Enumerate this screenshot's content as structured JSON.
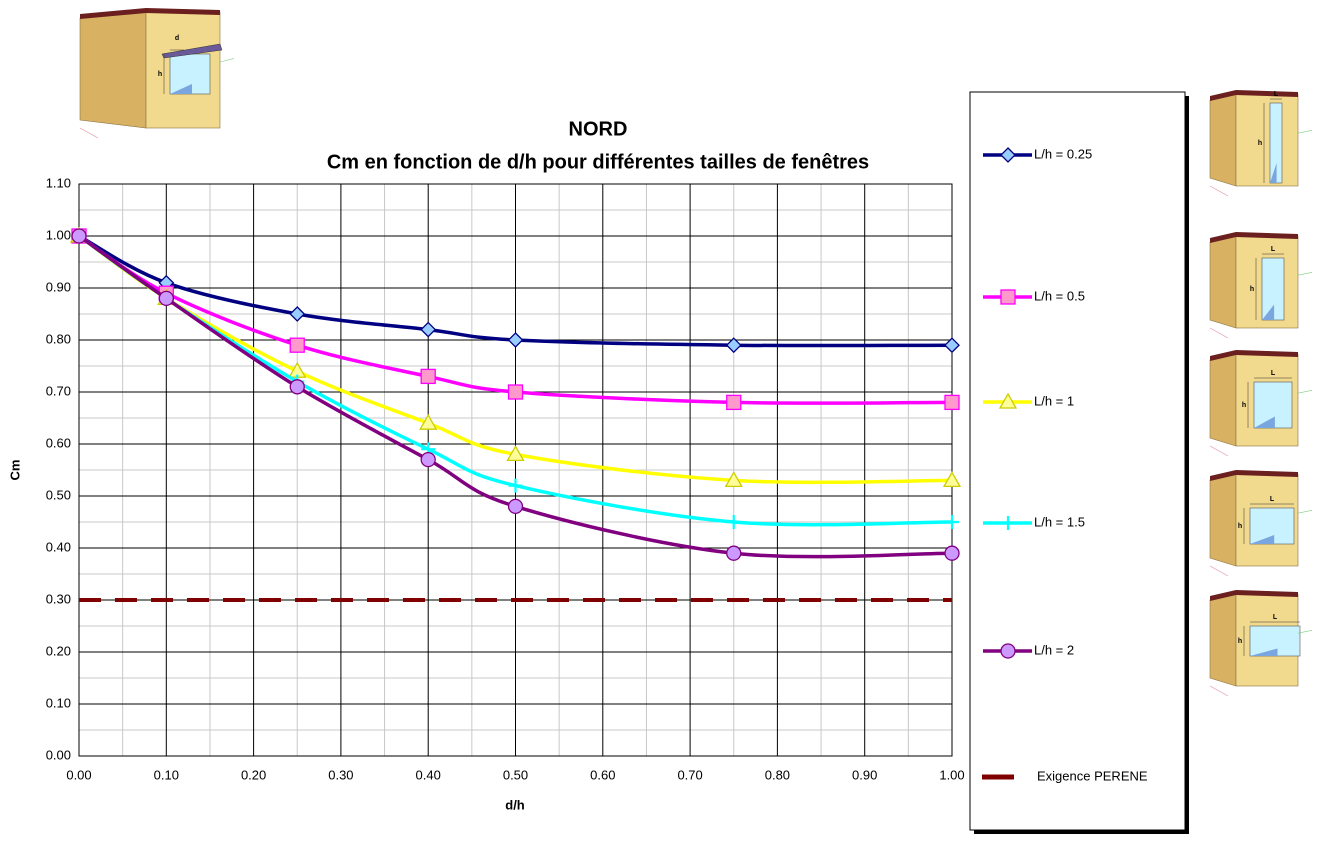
{
  "chart_data": {
    "type": "line",
    "title": "NORD",
    "subtitle": "Cm en fonction de d/h pour différentes tailles de fenêtres",
    "xlabel": "d/h",
    "ylabel": "Cm",
    "x": [
      0,
      0.1,
      0.25,
      0.4,
      0.5,
      0.75,
      1.0
    ],
    "series": [
      {
        "name": "L/h = 0.25",
        "color": "#000080",
        "marker": "diamond",
        "marker_fill": "#99ccff",
        "values": [
          1.0,
          0.91,
          0.85,
          0.82,
          0.8,
          0.79,
          0.79
        ]
      },
      {
        "name": "L/h = 0.5",
        "color": "#ff00ff",
        "marker": "square",
        "marker_fill": "#ff99cc",
        "values": [
          1.0,
          0.89,
          0.79,
          0.73,
          0.7,
          0.68,
          0.68
        ]
      },
      {
        "name": "L/h = 1",
        "color": "#ffff00",
        "marker": "triangle",
        "marker_fill": "#ffff99",
        "values": [
          1.0,
          0.88,
          0.74,
          0.64,
          0.58,
          0.53,
          0.53
        ]
      },
      {
        "name": "L/h = 1.5",
        "color": "#00ffff",
        "marker": "plus",
        "marker_fill": "#00ffff",
        "values": [
          1.0,
          0.88,
          0.72,
          0.59,
          0.52,
          0.45,
          0.45
        ]
      },
      {
        "name": "L/h = 2",
        "color": "#800080",
        "marker": "circle",
        "marker_fill": "#cc99ff",
        "values": [
          1.0,
          0.88,
          0.71,
          0.57,
          0.48,
          0.39,
          0.39
        ]
      },
      {
        "name": "Exigence PERENE",
        "color": "#800000",
        "marker": "none",
        "dashed": true,
        "values": [
          0.3,
          0.3,
          0.3,
          0.3,
          0.3,
          0.3,
          0.3
        ]
      }
    ],
    "xlim": [
      0,
      1.0
    ],
    "xticks": [
      {
        "value": 0,
        "label": "0.00"
      },
      {
        "value": 0.1,
        "label": "0.10"
      },
      {
        "value": 0.2,
        "label": "0.20"
      },
      {
        "value": 0.3,
        "label": "0.30"
      },
      {
        "value": 0.4,
        "label": "0.40"
      },
      {
        "value": 0.5,
        "label": "0.50"
      },
      {
        "value": 0.6,
        "label": "0.60"
      },
      {
        "value": 0.7,
        "label": "0.70"
      },
      {
        "value": 0.8,
        "label": "0.80"
      },
      {
        "value": 0.9,
        "label": "0.90"
      },
      {
        "value": 1.0,
        "label": "1.00"
      }
    ],
    "ylim": [
      0,
      1.1
    ],
    "yticks": [
      {
        "value": 0,
        "label": "0.00"
      },
      {
        "value": 0.1,
        "label": "0.10"
      },
      {
        "value": 0.2,
        "label": "0.20"
      },
      {
        "value": 0.3,
        "label": "0.30"
      },
      {
        "value": 0.4,
        "label": "0.40"
      },
      {
        "value": 0.5,
        "label": "0.50"
      },
      {
        "value": 0.6,
        "label": "0.60"
      },
      {
        "value": 0.7,
        "label": "0.70"
      },
      {
        "value": 0.8,
        "label": "0.80"
      },
      {
        "value": 0.9,
        "label": "0.90"
      },
      {
        "value": 1.0,
        "label": "1.00"
      },
      {
        "value": 1.1,
        "label": "1.10"
      }
    ],
    "grid": true,
    "legend": "right"
  },
  "illustrations": [
    {
      "labels": [
        "d",
        "h"
      ]
    },
    {
      "labels": [
        "L",
        "h"
      ]
    },
    {
      "labels": [
        "L",
        "h"
      ]
    },
    {
      "labels": [
        "L",
        "h"
      ]
    },
    {
      "labels": [
        "L",
        "h"
      ]
    },
    {
      "labels": [
        "L",
        "h"
      ]
    }
  ]
}
